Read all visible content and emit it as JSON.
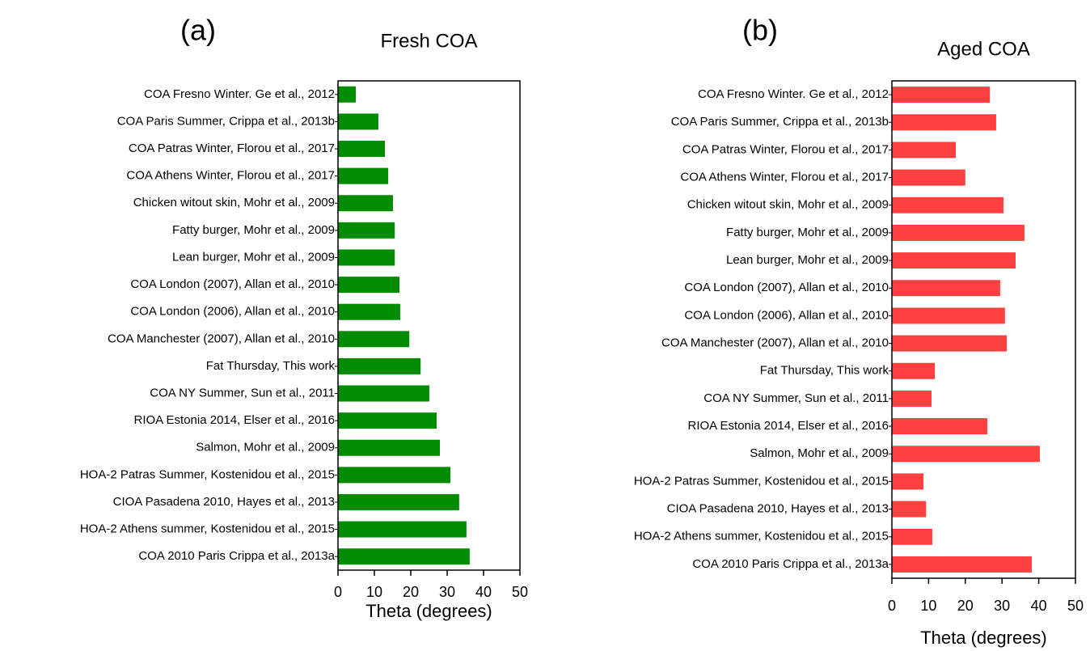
{
  "chart_data": [
    {
      "type": "barh",
      "label": "(a)",
      "title": "Fresh COA",
      "x_label": "Theta (degrees)",
      "color": "#008c00",
      "categories": [
        "COA Fresno Winter. Ge et al., 2012",
        "COA Paris Summer, Crippa et al., 2013b",
        "COA Patras Winter, Florou et al., 2017",
        "COA Athens Winter, Florou et al., 2017",
        "Chicken witout skin, Mohr et al., 2009",
        "Fatty burger, Mohr et al., 2009",
        "Lean burger, Mohr et al., 2009",
        "COA London (2007), Allan et al., 2010",
        "COA London (2006), Allan et al., 2010",
        "COA Manchester (2007), Allan et al., 2010",
        "Fat Thursday, This work",
        "COA NY Summer, Sun et al., 2011",
        "RIOA Estonia 2014, Elser et al., 2016",
        "Salmon, Mohr et al., 2009",
        "HOA-2 Patras Summer, Kostenidou et al., 2015",
        "CIOA Pasadena 2010, Hayes et al., 2013",
        "HOA-2 Athens summer, Kostenidou et al., 2015",
        "COA 2010 Paris Crippa et al., 2013a"
      ],
      "values": [
        4.9,
        11.1,
        12.9,
        13.8,
        15.1,
        15.6,
        15.6,
        16.9,
        17.1,
        19.6,
        22.7,
        25.1,
        27.1,
        28,
        30.9,
        33.3,
        35.3,
        36.2
      ],
      "xlim": [
        0,
        50
      ],
      "xticks": [
        0,
        10,
        20,
        30,
        40,
        50
      ]
    },
    {
      "type": "barh",
      "label": "(b)",
      "title": "Aged COA",
      "x_label": "Theta (degrees)",
      "color": "#ff4040",
      "categories": [
        "COA Fresno Winter. Ge et al., 2012",
        "COA Paris Summer, Crippa et al., 2013b",
        "COA Patras Winter, Florou et al., 2017",
        "COA Athens Winter, Florou et al., 2017",
        "Chicken witout skin, Mohr et al., 2009",
        "Fatty burger, Mohr et al., 2009",
        "Lean burger, Mohr et al., 2009",
        "COA London (2007), Allan et al., 2010",
        "COA London (2006), Allan et al., 2010",
        "COA Manchester (2007), Allan et al., 2010",
        "Fat Thursday, This work",
        "COA NY Summer, Sun et al., 2011",
        "RIOA Estonia 2014, Elser et al., 2016",
        "Salmon, Mohr et al., 2009",
        "HOA-2 Patras Summer, Kostenidou et al., 2015",
        "CIOA Pasadena 2010, Hayes et al., 2013",
        "HOA-2 Athens summer, Kostenidou et al., 2015",
        "COA 2010 Paris Crippa et al., 2013a"
      ],
      "values": [
        26.7,
        28.4,
        17.4,
        20,
        30.4,
        36.1,
        33.7,
        29.5,
        30.8,
        31.3,
        11.7,
        10.8,
        26,
        40.3,
        8.6,
        9.3,
        11,
        38.1
      ],
      "xlim": [
        0,
        50
      ],
      "xticks": [
        0,
        10,
        20,
        30,
        40,
        50
      ]
    }
  ]
}
